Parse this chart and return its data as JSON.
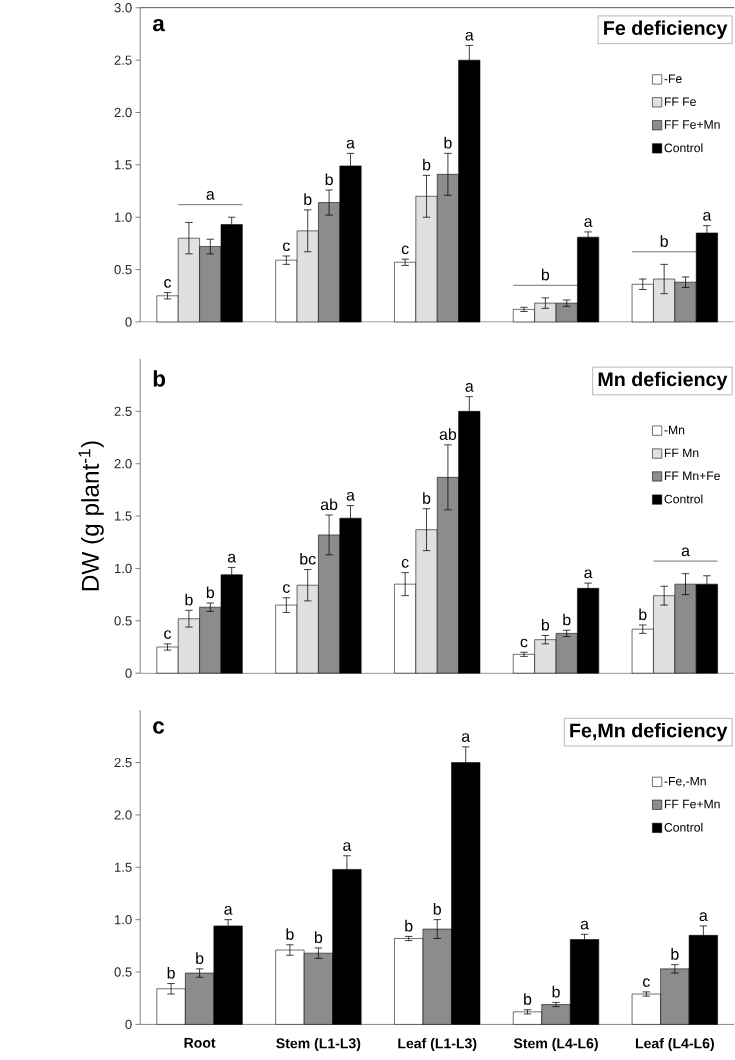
{
  "chart_data": [
    {
      "type": "bar",
      "title": "Fe deficiency",
      "annotations": [
        "a"
      ],
      "categories": [
        null,
        null,
        null,
        null,
        null
      ],
      "series": [
        {
          "name": "-Fe",
          "color": "#ffffff",
          "values": [
            0.25,
            0.59,
            0.57,
            0.12,
            0.36
          ],
          "errors": [
            0.03,
            0.04,
            0.03,
            0.02,
            0.05
          ],
          "value_labels": [
            "c",
            "c",
            "c",
            null,
            null
          ]
        },
        {
          "name": "FF Fe",
          "color": "#e0e0e0",
          "values": [
            0.8,
            0.87,
            1.2,
            0.18,
            0.41
          ],
          "errors": [
            0.15,
            0.2,
            0.2,
            0.05,
            0.14
          ],
          "value_labels": [
            null,
            "b",
            "b",
            "b",
            "b"
          ]
        },
        {
          "name": "FF Fe+Mn",
          "color": "#8c8c8c",
          "values": [
            0.72,
            1.14,
            1.41,
            0.18,
            0.38
          ],
          "errors": [
            0.07,
            0.12,
            0.2,
            0.03,
            0.05
          ],
          "value_labels": [
            "a",
            "b",
            "b",
            null,
            null
          ]
        },
        {
          "name": "Control",
          "color": "#000000",
          "values": [
            0.93,
            1.49,
            2.5,
            0.81,
            0.85
          ],
          "errors": [
            0.07,
            0.12,
            0.14,
            0.05,
            0.07
          ],
          "value_labels": [
            null,
            "a",
            "a",
            "a",
            "a"
          ]
        }
      ],
      "ylim": [
        0,
        3
      ],
      "yticks": [
        0,
        0.5,
        {
          "value": 1,
          "label": "1.0"
        },
        1.5,
        {
          "value": 2,
          "label": "2.0"
        },
        2.5,
        {
          "value": 3,
          "label": "3.0"
        }
      ],
      "legend": "top right",
      "tick_labels": "y"
    },
    {
      "type": "bar",
      "title": "Mn deficiency",
      "ylabel": "DW (g  plant$^{-1}$)",
      "annotations": [
        "b"
      ],
      "categories": [
        null,
        null,
        null,
        null,
        null
      ],
      "series": [
        {
          "name": "-Mn",
          "color": "#ffffff",
          "values": [
            0.25,
            0.65,
            0.85,
            0.18,
            0.42
          ],
          "errors": [
            0.03,
            0.07,
            0.11,
            0.02,
            0.04
          ],
          "value_labels": [
            "c",
            "c",
            "c",
            "c",
            "b"
          ]
        },
        {
          "name": "FF Mn",
          "color": "#e0e0e0",
          "values": [
            0.52,
            0.84,
            1.37,
            0.32,
            0.74
          ],
          "errors": [
            0.08,
            0.15,
            0.2,
            0.04,
            0.09
          ],
          "value_labels": [
            "b",
            "bc",
            "b",
            "b",
            null
          ]
        },
        {
          "name": "FF Mn+Fe",
          "color": "#8c8c8c",
          "values": [
            0.63,
            1.32,
            1.87,
            0.38,
            0.85
          ],
          "errors": [
            0.04,
            0.19,
            0.31,
            0.03,
            0.1
          ],
          "value_labels": [
            "b",
            "ab",
            "ab",
            "b",
            "a"
          ]
        },
        {
          "name": "Control",
          "color": "#000000",
          "values": [
            0.94,
            1.48,
            2.5,
            0.81,
            0.85
          ],
          "errors": [
            0.07,
            0.12,
            0.14,
            0.05,
            0.08
          ],
          "value_labels": [
            "a",
            "a",
            "a",
            "a",
            null
          ]
        }
      ],
      "ylim": [
        0,
        3
      ],
      "yticks": [
        0,
        0.5,
        {
          "value": 1,
          "label": "1.0"
        },
        1.5,
        {
          "value": 2,
          "label": "2.0"
        },
        2.5
      ],
      "legend": "top right",
      "tick_labels": "y"
    },
    {
      "type": "bar",
      "title": "Fe,Mn deficiency",
      "annotations": [
        "c"
      ],
      "categories": [
        "Root",
        "Stem (L1-L3)",
        "Leaf (L1-L3)",
        "Stem (L4-L6)",
        "Leaf (L4-L6)"
      ],
      "series": [
        {
          "name": "-Fe,-Mn",
          "color": "#ffffff",
          "values": [
            0.34,
            0.71,
            0.82,
            0.12,
            0.29
          ],
          "errors": [
            0.05,
            0.05,
            0.02,
            0.02,
            0.02
          ],
          "value_labels": [
            "b",
            "b",
            "b",
            "b",
            "c"
          ]
        },
        {
          "name": "FF Fe+Mn",
          "color": "#8c8c8c",
          "values": [
            0.49,
            0.68,
            0.91,
            0.19,
            0.53
          ],
          "errors": [
            0.04,
            0.05,
            0.09,
            0.02,
            0.04
          ],
          "value_labels": [
            "b",
            "b",
            "b",
            "b",
            "b"
          ]
        },
        {
          "name": "Control",
          "color": "#000000",
          "values": [
            0.94,
            1.48,
            2.5,
            0.81,
            0.85
          ],
          "errors": [
            0.06,
            0.13,
            0.15,
            0.05,
            0.09
          ],
          "value_labels": [
            "a",
            "a",
            "a",
            "a",
            "a"
          ]
        }
      ],
      "ylim": [
        0,
        3
      ],
      "yticks": [
        0,
        0.5,
        {
          "value": 1,
          "label": "1.0"
        },
        1.5,
        {
          "value": 2,
          "label": "2.0"
        },
        2.5
      ],
      "legend": "top right"
    }
  ]
}
